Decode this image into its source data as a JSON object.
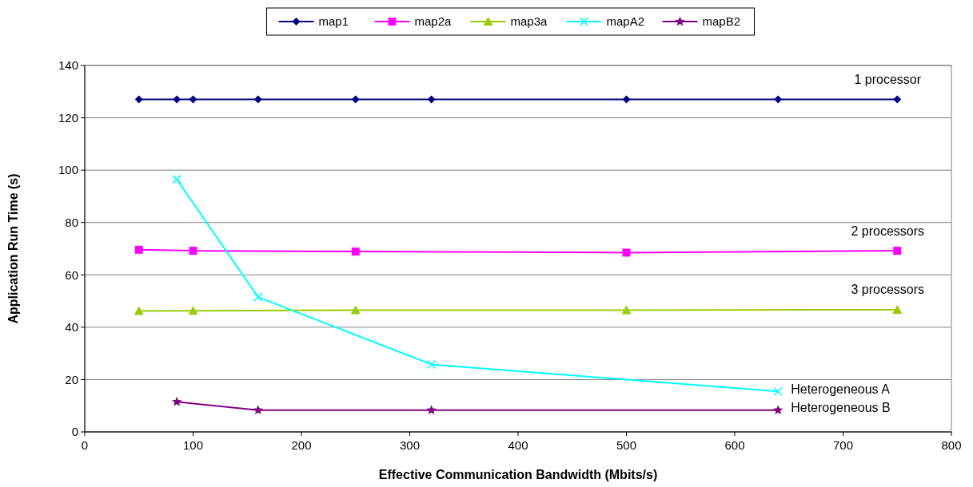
{
  "chart_data": {
    "type": "line",
    "xlabel": "Effective Communication Bandwidth (Mbits/s)",
    "ylabel": "Application Run Time (s)",
    "xlim": [
      0,
      800
    ],
    "xticks": [
      0,
      100,
      200,
      300,
      400,
      500,
      600,
      700,
      800
    ],
    "ylim": [
      0,
      140
    ],
    "yticks": [
      0,
      20,
      40,
      60,
      80,
      100,
      120,
      140
    ],
    "grid": "y",
    "legend": "top",
    "series": [
      {
        "name": "map1",
        "color": "#000080",
        "marker": "diamond",
        "x": [
          50,
          85,
          100,
          160,
          250,
          320,
          500,
          640,
          750
        ],
        "values": [
          127,
          127,
          127,
          127,
          127,
          127,
          127,
          127,
          127
        ]
      },
      {
        "name": "map2a",
        "color": "#ff00ff",
        "marker": "square",
        "x": [
          50,
          100,
          250,
          500,
          750
        ],
        "values": [
          69.6,
          69.2,
          68.9,
          68.5,
          69.2
        ]
      },
      {
        "name": "map3a",
        "color": "#99cc00",
        "marker": "triangle",
        "x": [
          50,
          100,
          250,
          500,
          750
        ],
        "values": [
          46.2,
          46.3,
          46.5,
          46.5,
          46.7
        ]
      },
      {
        "name": "mapA2",
        "color": "#00ffff",
        "marker": "cross",
        "x": [
          85,
          160,
          320,
          640
        ],
        "values": [
          96.5,
          51.5,
          25.8,
          15.5
        ]
      },
      {
        "name": "mapB2",
        "color": "#800080",
        "marker": "star",
        "x": [
          85,
          160,
          320,
          640
        ],
        "values": [
          11.5,
          8.3,
          8.3,
          8.3
        ]
      }
    ],
    "annotations": [
      "1 processor",
      "2 processors",
      "3 processors",
      "Heterogeneous A",
      "Heterogeneous B"
    ]
  }
}
